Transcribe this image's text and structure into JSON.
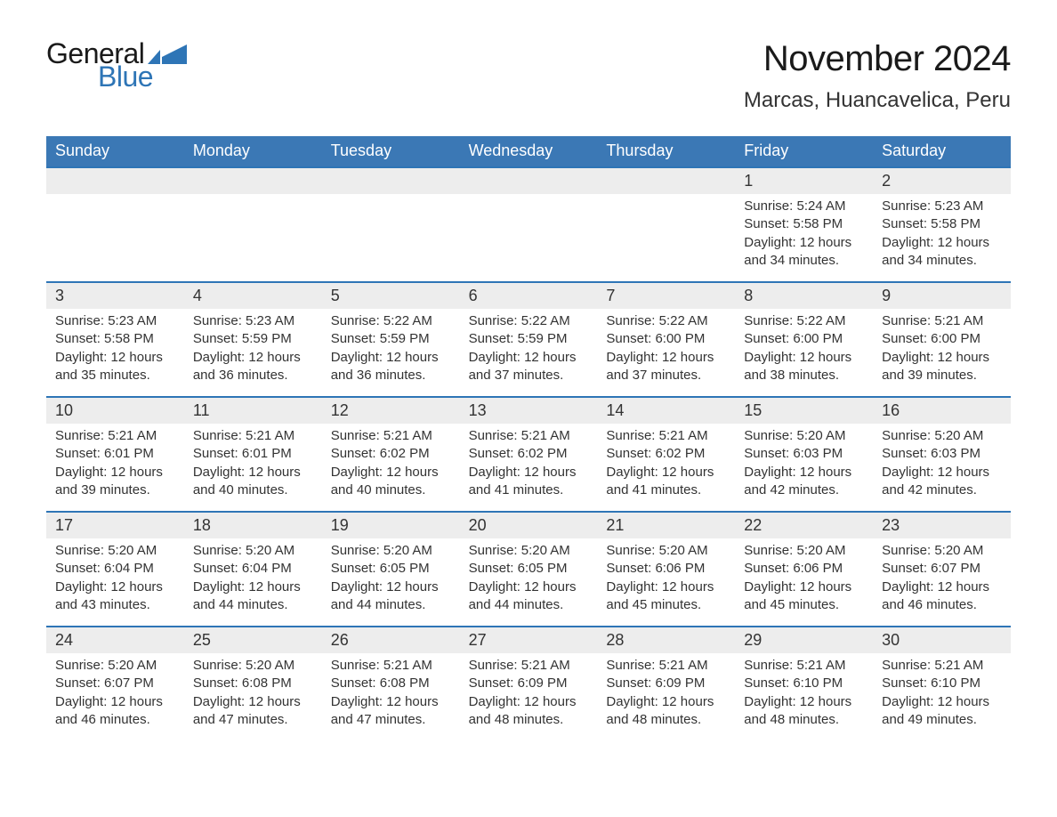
{
  "logo": {
    "text_general": "General",
    "text_blue": "Blue",
    "flag_color": "#2e75b6"
  },
  "header": {
    "month_title": "November 2024",
    "location": "Marcas, Huancavelica, Peru"
  },
  "colors": {
    "header_bg": "#3b78b5",
    "header_text": "#ffffff",
    "daynum_bg": "#ededed",
    "daynum_border_top": "#2e75b6",
    "body_text": "#333333",
    "page_bg": "#ffffff"
  },
  "typography": {
    "month_title_fontsize": 40,
    "location_fontsize": 24,
    "weekday_fontsize": 18,
    "daynum_fontsize": 18,
    "body_fontsize": 15
  },
  "weekdays": [
    "Sunday",
    "Monday",
    "Tuesday",
    "Wednesday",
    "Thursday",
    "Friday",
    "Saturday"
  ],
  "weeks": [
    [
      {
        "empty": true
      },
      {
        "empty": true
      },
      {
        "empty": true
      },
      {
        "empty": true
      },
      {
        "empty": true
      },
      {
        "num": "1",
        "sunrise": "Sunrise: 5:24 AM",
        "sunset": "Sunset: 5:58 PM",
        "daylight": "Daylight: 12 hours and 34 minutes."
      },
      {
        "num": "2",
        "sunrise": "Sunrise: 5:23 AM",
        "sunset": "Sunset: 5:58 PM",
        "daylight": "Daylight: 12 hours and 34 minutes."
      }
    ],
    [
      {
        "num": "3",
        "sunrise": "Sunrise: 5:23 AM",
        "sunset": "Sunset: 5:58 PM",
        "daylight": "Daylight: 12 hours and 35 minutes."
      },
      {
        "num": "4",
        "sunrise": "Sunrise: 5:23 AM",
        "sunset": "Sunset: 5:59 PM",
        "daylight": "Daylight: 12 hours and 36 minutes."
      },
      {
        "num": "5",
        "sunrise": "Sunrise: 5:22 AM",
        "sunset": "Sunset: 5:59 PM",
        "daylight": "Daylight: 12 hours and 36 minutes."
      },
      {
        "num": "6",
        "sunrise": "Sunrise: 5:22 AM",
        "sunset": "Sunset: 5:59 PM",
        "daylight": "Daylight: 12 hours and 37 minutes."
      },
      {
        "num": "7",
        "sunrise": "Sunrise: 5:22 AM",
        "sunset": "Sunset: 6:00 PM",
        "daylight": "Daylight: 12 hours and 37 minutes."
      },
      {
        "num": "8",
        "sunrise": "Sunrise: 5:22 AM",
        "sunset": "Sunset: 6:00 PM",
        "daylight": "Daylight: 12 hours and 38 minutes."
      },
      {
        "num": "9",
        "sunrise": "Sunrise: 5:21 AM",
        "sunset": "Sunset: 6:00 PM",
        "daylight": "Daylight: 12 hours and 39 minutes."
      }
    ],
    [
      {
        "num": "10",
        "sunrise": "Sunrise: 5:21 AM",
        "sunset": "Sunset: 6:01 PM",
        "daylight": "Daylight: 12 hours and 39 minutes."
      },
      {
        "num": "11",
        "sunrise": "Sunrise: 5:21 AM",
        "sunset": "Sunset: 6:01 PM",
        "daylight": "Daylight: 12 hours and 40 minutes."
      },
      {
        "num": "12",
        "sunrise": "Sunrise: 5:21 AM",
        "sunset": "Sunset: 6:02 PM",
        "daylight": "Daylight: 12 hours and 40 minutes."
      },
      {
        "num": "13",
        "sunrise": "Sunrise: 5:21 AM",
        "sunset": "Sunset: 6:02 PM",
        "daylight": "Daylight: 12 hours and 41 minutes."
      },
      {
        "num": "14",
        "sunrise": "Sunrise: 5:21 AM",
        "sunset": "Sunset: 6:02 PM",
        "daylight": "Daylight: 12 hours and 41 minutes."
      },
      {
        "num": "15",
        "sunrise": "Sunrise: 5:20 AM",
        "sunset": "Sunset: 6:03 PM",
        "daylight": "Daylight: 12 hours and 42 minutes."
      },
      {
        "num": "16",
        "sunrise": "Sunrise: 5:20 AM",
        "sunset": "Sunset: 6:03 PM",
        "daylight": "Daylight: 12 hours and 42 minutes."
      }
    ],
    [
      {
        "num": "17",
        "sunrise": "Sunrise: 5:20 AM",
        "sunset": "Sunset: 6:04 PM",
        "daylight": "Daylight: 12 hours and 43 minutes."
      },
      {
        "num": "18",
        "sunrise": "Sunrise: 5:20 AM",
        "sunset": "Sunset: 6:04 PM",
        "daylight": "Daylight: 12 hours and 44 minutes."
      },
      {
        "num": "19",
        "sunrise": "Sunrise: 5:20 AM",
        "sunset": "Sunset: 6:05 PM",
        "daylight": "Daylight: 12 hours and 44 minutes."
      },
      {
        "num": "20",
        "sunrise": "Sunrise: 5:20 AM",
        "sunset": "Sunset: 6:05 PM",
        "daylight": "Daylight: 12 hours and 44 minutes."
      },
      {
        "num": "21",
        "sunrise": "Sunrise: 5:20 AM",
        "sunset": "Sunset: 6:06 PM",
        "daylight": "Daylight: 12 hours and 45 minutes."
      },
      {
        "num": "22",
        "sunrise": "Sunrise: 5:20 AM",
        "sunset": "Sunset: 6:06 PM",
        "daylight": "Daylight: 12 hours and 45 minutes."
      },
      {
        "num": "23",
        "sunrise": "Sunrise: 5:20 AM",
        "sunset": "Sunset: 6:07 PM",
        "daylight": "Daylight: 12 hours and 46 minutes."
      }
    ],
    [
      {
        "num": "24",
        "sunrise": "Sunrise: 5:20 AM",
        "sunset": "Sunset: 6:07 PM",
        "daylight": "Daylight: 12 hours and 46 minutes."
      },
      {
        "num": "25",
        "sunrise": "Sunrise: 5:20 AM",
        "sunset": "Sunset: 6:08 PM",
        "daylight": "Daylight: 12 hours and 47 minutes."
      },
      {
        "num": "26",
        "sunrise": "Sunrise: 5:21 AM",
        "sunset": "Sunset: 6:08 PM",
        "daylight": "Daylight: 12 hours and 47 minutes."
      },
      {
        "num": "27",
        "sunrise": "Sunrise: 5:21 AM",
        "sunset": "Sunset: 6:09 PM",
        "daylight": "Daylight: 12 hours and 48 minutes."
      },
      {
        "num": "28",
        "sunrise": "Sunrise: 5:21 AM",
        "sunset": "Sunset: 6:09 PM",
        "daylight": "Daylight: 12 hours and 48 minutes."
      },
      {
        "num": "29",
        "sunrise": "Sunrise: 5:21 AM",
        "sunset": "Sunset: 6:10 PM",
        "daylight": "Daylight: 12 hours and 48 minutes."
      },
      {
        "num": "30",
        "sunrise": "Sunrise: 5:21 AM",
        "sunset": "Sunset: 6:10 PM",
        "daylight": "Daylight: 12 hours and 49 minutes."
      }
    ]
  ]
}
